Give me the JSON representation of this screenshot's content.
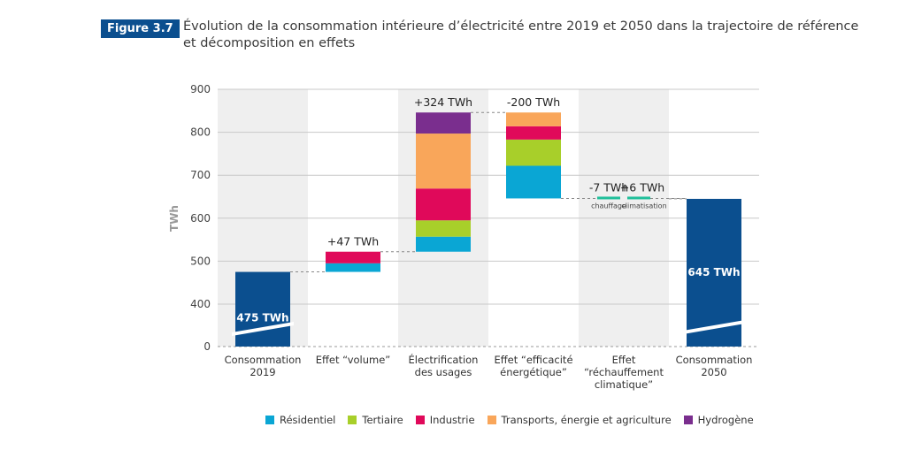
{
  "figure": {
    "badge": "Figure 3.7",
    "title": "Évolution de la consommation intérieure d’électricité entre 2019 et 2050 dans la trajectoire de référence et décomposition en effets"
  },
  "chart_data": {
    "type": "bar",
    "subtype": "waterfall",
    "title": "Évolution de la consommation intérieure d’électricité entre 2019 et 2050 dans la trajectoire de référence et décomposition en effets",
    "ylabel": "TWh",
    "xlabel": "",
    "ylim": [
      0,
      900
    ],
    "axis_break": [
      0,
      400
    ],
    "yticks": [
      0,
      400,
      500,
      600,
      700,
      800,
      900
    ],
    "grid": true,
    "legend_position": "bottom",
    "colors": {
      "Résidentiel": "#0aa6d4",
      "Tertiaire": "#a8cf2a",
      "Industrie": "#e0095a",
      "Transports, énergie et agriculture": "#f9a65a",
      "Hydrogène": "#7a2e8e",
      "total": "#0b4f8f"
    },
    "series_names": [
      "Résidentiel",
      "Tertiaire",
      "Industrie",
      "Transports, énergie et agriculture",
      "Hydrogène"
    ],
    "categories": [
      {
        "label": [
          "Consommation",
          "2019"
        ],
        "kind": "total",
        "value": 475,
        "data_label": "475 TWh",
        "shaded": true
      },
      {
        "label": [
          "Effet “volume”"
        ],
        "kind": "delta",
        "data_label": "+47 TWh",
        "shaded": false,
        "segments": [
          {
            "series": "Résidentiel",
            "value": 20
          },
          {
            "series": "Industrie",
            "value": 27
          }
        ]
      },
      {
        "label": [
          "Électrification",
          "des usages"
        ],
        "kind": "delta",
        "data_label": "+324 TWh",
        "shaded": true,
        "segments": [
          {
            "series": "Résidentiel",
            "value": 35
          },
          {
            "series": "Tertiaire",
            "value": 38
          },
          {
            "series": "Industrie",
            "value": 74
          },
          {
            "series": "Transports, énergie et agriculture",
            "value": 128
          },
          {
            "series": "Hydrogène",
            "value": 49
          }
        ]
      },
      {
        "label": [
          "Effet “efficacité",
          "énergétique”"
        ],
        "kind": "delta",
        "data_label": "-200 TWh",
        "shaded": false,
        "segments": [
          {
            "series": "Résidentiel",
            "value": -76
          },
          {
            "series": "Tertiaire",
            "value": -61
          },
          {
            "series": "Industrie",
            "value": -31
          },
          {
            "series": "Transports, énergie et agriculture",
            "value": -32
          }
        ]
      },
      {
        "label": [
          "Effet",
          "“réchauffement",
          "climatique”"
        ],
        "kind": "climate",
        "shaded": true,
        "sub": [
          {
            "name": "chauffage",
            "data_label": "-7 TWh",
            "value": -7
          },
          {
            "name": "climatisation",
            "data_label": "+6 TWh",
            "value": 6
          }
        ]
      },
      {
        "label": [
          "Consommation",
          "2050"
        ],
        "kind": "total",
        "value": 645,
        "data_label": "645 TWh",
        "shaded": false
      }
    ]
  },
  "legend": [
    {
      "label": "Résidentiel",
      "color": "#0aa6d4"
    },
    {
      "label": "Tertiaire",
      "color": "#a8cf2a"
    },
    {
      "label": "Industrie",
      "color": "#e0095a"
    },
    {
      "label": "Transports, énergie et agriculture",
      "color": "#f9a65a"
    },
    {
      "label": "Hydrogène",
      "color": "#7a2e8e"
    }
  ]
}
